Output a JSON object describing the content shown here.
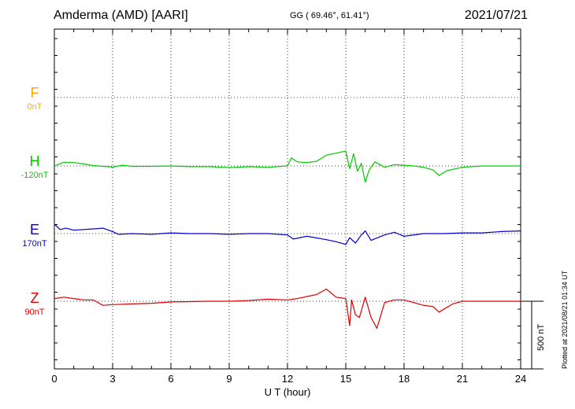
{
  "header": {
    "station": "Amderma (AMD)  [AARI]",
    "coords": "GG ( 69.46°,  61.41°)",
    "date": "2021/07/21"
  },
  "channels": [
    {
      "name": "F",
      "baseline": "0nT",
      "color": "#ffaa00"
    },
    {
      "name": "H",
      "baseline": "-120nT",
      "color": "#00cc00"
    },
    {
      "name": "E",
      "baseline": "170nT",
      "color": "#0000cc"
    },
    {
      "name": "Z",
      "baseline": "90nT",
      "color": "#dd0000"
    }
  ],
  "scale_label": "500 nT",
  "credit": "Plotted at 2021/08/21 01:34 UT",
  "chart_data": {
    "type": "line",
    "xlabel": "U T (hour)",
    "xlim": [
      0,
      24
    ],
    "xticks": [
      0,
      3,
      6,
      9,
      12,
      15,
      18,
      21,
      24
    ],
    "grid": true,
    "scale_bar_nT": 500,
    "series": [
      {
        "name": "H",
        "color": "#00cc00",
        "x": [
          0,
          0.5,
          1,
          1.5,
          2,
          2.5,
          3,
          3.5,
          4,
          5,
          6,
          7,
          8,
          9,
          10,
          11,
          12,
          12.2,
          12.5,
          13,
          13.5,
          14,
          14.5,
          15,
          15.2,
          15.4,
          15.6,
          15.8,
          16,
          16.2,
          16.5,
          17,
          17.5,
          18,
          18.5,
          19,
          19.5,
          19.8,
          20.2,
          21,
          22,
          23,
          24
        ],
        "y": [
          0,
          28,
          25,
          15,
          3,
          -3,
          -8,
          5,
          -3,
          -3,
          0,
          -5,
          -5,
          -12,
          -5,
          -10,
          0,
          60,
          30,
          25,
          35,
          80,
          95,
          110,
          -20,
          90,
          -40,
          20,
          -120,
          -30,
          30,
          -10,
          10,
          5,
          0,
          -10,
          -30,
          -70,
          -35,
          -10,
          0,
          0,
          0
        ]
      },
      {
        "name": "E",
        "color": "#0000cc",
        "x": [
          0,
          0.3,
          0.6,
          1,
          2,
          2.5,
          3,
          3.3,
          4,
          5,
          6,
          7,
          8,
          9,
          10,
          11,
          12,
          12.3,
          13,
          14,
          14.5,
          15,
          15.2,
          15.5,
          15.8,
          16,
          16.3,
          17,
          17.5,
          18,
          19,
          20,
          21,
          22,
          23,
          24
        ],
        "y": [
          70,
          30,
          40,
          25,
          35,
          40,
          15,
          -5,
          0,
          -5,
          5,
          0,
          0,
          -5,
          0,
          0,
          -10,
          -40,
          -20,
          -45,
          -60,
          -80,
          -30,
          -70,
          -10,
          20,
          -50,
          -10,
          10,
          -20,
          0,
          0,
          5,
          5,
          15,
          20
        ]
      },
      {
        "name": "Z",
        "color": "#dd0000",
        "x": [
          0,
          0.5,
          1,
          1.5,
          2,
          2.5,
          3,
          4,
          5,
          6,
          7,
          8,
          9,
          10,
          11,
          12,
          12.5,
          13,
          13.5,
          14,
          14.5,
          15,
          15.2,
          15.3,
          15.5,
          15.7,
          16,
          16.3,
          16.6,
          17,
          17.5,
          18,
          19,
          19.5,
          19.8,
          20.5,
          21,
          22,
          23,
          24
        ],
        "y": [
          20,
          30,
          20,
          10,
          10,
          -30,
          -25,
          -20,
          -15,
          -5,
          -3,
          0,
          0,
          5,
          15,
          10,
          20,
          35,
          50,
          90,
          30,
          20,
          -180,
          10,
          -100,
          -120,
          30,
          -120,
          -200,
          -10,
          10,
          10,
          -30,
          -40,
          -80,
          -20,
          0,
          0,
          0,
          0
        ]
      },
      {
        "name": "F",
        "color": "#ffaa00",
        "x": [],
        "y": []
      }
    ]
  }
}
